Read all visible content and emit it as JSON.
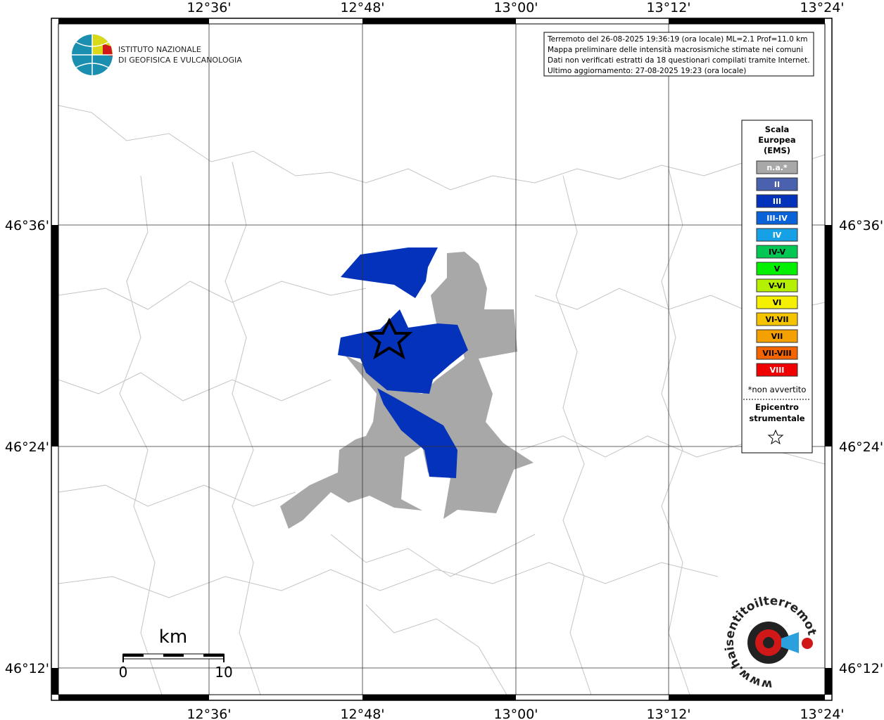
{
  "axes": {
    "top": [
      "12°36'",
      "12°48'",
      "13°00'",
      "13°12'",
      "13°24'"
    ],
    "bottom": [
      "12°36'",
      "12°48'",
      "13°00'",
      "13°12'",
      "13°24'"
    ],
    "left": [
      "46°36'",
      "46°24'",
      "46°12'"
    ],
    "right": [
      "46°36'",
      "46°24'",
      "46°12'"
    ]
  },
  "logo": {
    "lines": [
      "ISTITUTO NAZIONALE",
      "DI GEOFISICA E VULCANOLOGIA"
    ]
  },
  "info": {
    "lines": [
      "Terremoto del 26-08-2025 19:36:19 (ora locale) ML=2.1 Prof=11.0 km",
      "Mappa preliminare delle intensità macrosismiche stimate nei comuni",
      "Dati non verificati estratti da 18 questionari compilati tramite Internet.",
      "Ultimo aggiornamento: 27-08-2025 19:23 (ora locale)"
    ]
  },
  "legend": {
    "title": [
      "Scala",
      "Europea",
      "(EMS)"
    ],
    "items": [
      {
        "label": "n.a.*",
        "color": "#a8a8a8",
        "text_color": "#ffffff"
      },
      {
        "label": "II",
        "color": "#4a62ae",
        "text_color": "#ffffff"
      },
      {
        "label": "III",
        "color": "#0532bb",
        "text_color": "#ffffff"
      },
      {
        "label": "III-IV",
        "color": "#0a62d8",
        "text_color": "#ffffff"
      },
      {
        "label": "IV",
        "color": "#16a0e6",
        "text_color": "#ffffff"
      },
      {
        "label": "IV-V",
        "color": "#00c853",
        "text_color": "#000000"
      },
      {
        "label": "V",
        "color": "#00f000",
        "text_color": "#000000"
      },
      {
        "label": "V-VI",
        "color": "#b4f000",
        "text_color": "#000000"
      },
      {
        "label": "VI",
        "color": "#f4f000",
        "text_color": "#000000"
      },
      {
        "label": "VI-VII",
        "color": "#f4c400",
        "text_color": "#000000"
      },
      {
        "label": "VII",
        "color": "#f4a000",
        "text_color": "#000000"
      },
      {
        "label": "VII-VIII",
        "color": "#f46400",
        "text_color": "#000000"
      },
      {
        "label": "VIII",
        "color": "#f00000",
        "text_color": "#ffffff"
      }
    ],
    "note": "*non avvertito",
    "epicenter": [
      "Epicentro",
      "strumentale"
    ]
  },
  "scale_bar": {
    "unit": "km",
    "start": 0,
    "end": 10
  },
  "hsit_logo": {
    "text": "www.haisentitoilterremoto.it"
  }
}
